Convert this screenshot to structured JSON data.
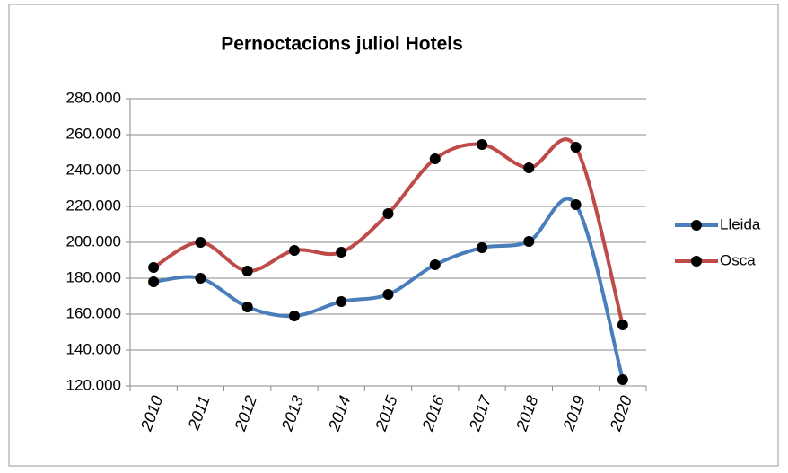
{
  "chart_data": {
    "type": "line",
    "title": "Pernoctacions juliol Hotels",
    "categories": [
      "2010",
      "2011",
      "2012",
      "2013",
      "2014",
      "2015",
      "2016",
      "2017",
      "2018",
      "2019",
      "2020"
    ],
    "series": [
      {
        "name": "Lleida",
        "color": "#4a7ebb",
        "values": [
          178000,
          180000,
          164000,
          159000,
          167000,
          171000,
          187500,
          197000,
          200500,
          221000,
          123500
        ]
      },
      {
        "name": "Osca",
        "color": "#be4b48",
        "values": [
          186000,
          200000,
          184000,
          195500,
          194500,
          216000,
          246500,
          254500,
          241500,
          253000,
          154000
        ]
      }
    ],
    "ylim": [
      120000,
      280000
    ],
    "yticks": [
      {
        "value": 120000,
        "label": "120.000"
      },
      {
        "value": 140000,
        "label": "140.000"
      },
      {
        "value": 160000,
        "label": "160.000"
      },
      {
        "value": 180000,
        "label": "180.000"
      },
      {
        "value": 200000,
        "label": "200.000"
      },
      {
        "value": 220000,
        "label": "220.000"
      },
      {
        "value": 240000,
        "label": "240.000"
      },
      {
        "value": 260000,
        "label": "260.000"
      },
      {
        "value": 280000,
        "label": "280.000"
      }
    ],
    "grid": true,
    "legend": "right",
    "smooth": true
  }
}
